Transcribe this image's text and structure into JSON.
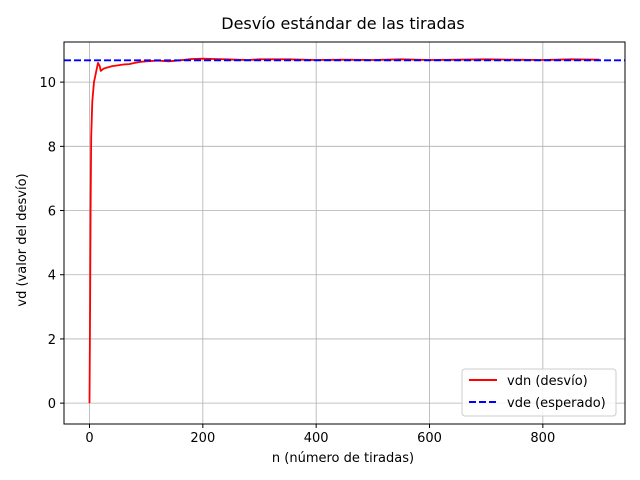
{
  "chart_data": {
    "type": "line",
    "title": "Desvío estándar de las tiradas",
    "xlabel": "n (número de tiradas)",
    "ylabel": "vd (valor del desvío)",
    "xlim": [
      -45,
      945
    ],
    "ylim": [
      -0.65,
      11.25
    ],
    "xticks": [
      0,
      200,
      400,
      600,
      800
    ],
    "yticks": [
      0,
      2,
      4,
      6,
      8,
      10
    ],
    "grid": true,
    "legend_position": "lower-right",
    "series": [
      {
        "name": "vdn (desvío)",
        "color": "#ff0000",
        "style": "solid",
        "points": [
          [
            0,
            0
          ],
          [
            1,
            3.0
          ],
          [
            2,
            6.0
          ],
          [
            3,
            8.3
          ],
          [
            5,
            9.4
          ],
          [
            8,
            10.0
          ],
          [
            12,
            10.35
          ],
          [
            15,
            10.6
          ],
          [
            18,
            10.5
          ],
          [
            20,
            10.35
          ],
          [
            25,
            10.42
          ],
          [
            30,
            10.45
          ],
          [
            40,
            10.5
          ],
          [
            50,
            10.52
          ],
          [
            60,
            10.55
          ],
          [
            70,
            10.56
          ],
          [
            80,
            10.6
          ],
          [
            90,
            10.63
          ],
          [
            100,
            10.65
          ],
          [
            120,
            10.67
          ],
          [
            140,
            10.65
          ],
          [
            160,
            10.68
          ],
          [
            180,
            10.72
          ],
          [
            200,
            10.73
          ],
          [
            220,
            10.72
          ],
          [
            240,
            10.71
          ],
          [
            260,
            10.7
          ],
          [
            280,
            10.69
          ],
          [
            300,
            10.71
          ],
          [
            350,
            10.71
          ],
          [
            400,
            10.69
          ],
          [
            450,
            10.7
          ],
          [
            500,
            10.69
          ],
          [
            550,
            10.71
          ],
          [
            600,
            10.69
          ],
          [
            650,
            10.7
          ],
          [
            700,
            10.71
          ],
          [
            750,
            10.7
          ],
          [
            800,
            10.69
          ],
          [
            850,
            10.71
          ],
          [
            900,
            10.7
          ]
        ]
      },
      {
        "name": "vde (esperado)",
        "color": "#0000ff",
        "style": "dashed",
        "value": 10.68
      }
    ]
  }
}
